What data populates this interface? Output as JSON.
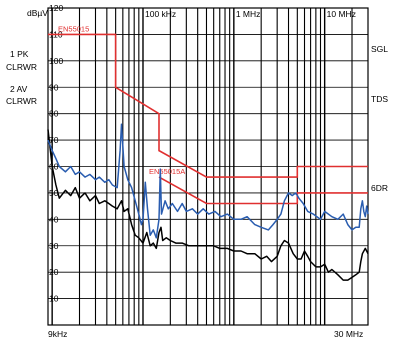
{
  "header": {
    "unit": "dBµV",
    "left_labels": [
      "1 PK",
      "CLRWR",
      "2 AV",
      "CLRWR"
    ],
    "right_labels": [
      "SGL",
      "TDS",
      "6DR"
    ],
    "x_start_label": "9kHz",
    "x_end_label": "30 MHz"
  },
  "chart_data": {
    "type": "line",
    "x_scale": "log",
    "xlim_hz": [
      9000,
      30000000
    ],
    "ylim": [
      0,
      120
    ],
    "ylabel": "dBµV",
    "x_tick_labels": [
      {
        "hz": 100000,
        "label": "100 kHz"
      },
      {
        "hz": 1000000,
        "label": "1 MHz"
      },
      {
        "hz": 10000000,
        "label": "10 MHz"
      }
    ],
    "y_tick_labels": [
      "120",
      "110",
      "100",
      "90",
      "80",
      "70",
      "60",
      "50",
      "40",
      "30",
      "20",
      "10"
    ],
    "grid": true,
    "limit_lines": [
      {
        "name": "EN55015",
        "color": "#e03030",
        "points": [
          [
            9000,
            110
          ],
          [
            50000,
            110
          ],
          [
            50000,
            90
          ],
          [
            150000,
            80
          ],
          [
            150000,
            66
          ],
          [
            500000,
            56
          ],
          [
            5000000,
            56
          ],
          [
            5000000,
            60
          ],
          [
            30000000,
            60
          ]
        ]
      },
      {
        "name": "EN55015A",
        "color": "#e03030",
        "points": [
          [
            150000,
            56
          ],
          [
            500000,
            46
          ],
          [
            5000000,
            46
          ],
          [
            5000000,
            50
          ],
          [
            30000000,
            50
          ]
        ]
      }
    ],
    "series": [
      {
        "name": "1 PK",
        "color": "#2a5db0",
        "points": [
          [
            9000,
            70
          ],
          [
            10000,
            66
          ],
          [
            11000,
            63
          ],
          [
            12000,
            60
          ],
          [
            14000,
            58
          ],
          [
            16000,
            60
          ],
          [
            18000,
            57
          ],
          [
            20000,
            58
          ],
          [
            23000,
            56
          ],
          [
            26000,
            57
          ],
          [
            30000,
            55
          ],
          [
            33000,
            56
          ],
          [
            38000,
            54
          ],
          [
            42000,
            55
          ],
          [
            46000,
            53
          ],
          [
            52000,
            52
          ],
          [
            56000,
            66
          ],
          [
            58000,
            76
          ],
          [
            62000,
            60
          ],
          [
            68000,
            55
          ],
          [
            75000,
            52
          ],
          [
            82000,
            47
          ],
          [
            90000,
            42
          ],
          [
            96000,
            38
          ],
          [
            100000,
            40
          ],
          [
            106000,
            54
          ],
          [
            112000,
            44
          ],
          [
            120000,
            34
          ],
          [
            130000,
            36
          ],
          [
            140000,
            33
          ],
          [
            150000,
            40
          ],
          [
            155000,
            59
          ],
          [
            160000,
            42
          ],
          [
            175000,
            47
          ],
          [
            190000,
            44
          ],
          [
            210000,
            46
          ],
          [
            240000,
            43
          ],
          [
            270000,
            46
          ],
          [
            300000,
            43
          ],
          [
            350000,
            44
          ],
          [
            400000,
            42
          ],
          [
            460000,
            44
          ],
          [
            530000,
            42
          ],
          [
            620000,
            43
          ],
          [
            720000,
            41
          ],
          [
            850000,
            42
          ],
          [
            1000000,
            40
          ],
          [
            1200000,
            40
          ],
          [
            1400000,
            41
          ],
          [
            1700000,
            38
          ],
          [
            2000000,
            37
          ],
          [
            2400000,
            36
          ],
          [
            2700000,
            38
          ],
          [
            3000000,
            40
          ],
          [
            3300000,
            42
          ],
          [
            3600000,
            47
          ],
          [
            4000000,
            50
          ],
          [
            4400000,
            49
          ],
          [
            4800000,
            50
          ],
          [
            5200000,
            48
          ],
          [
            5800000,
            46
          ],
          [
            6500000,
            43
          ],
          [
            7500000,
            42
          ],
          [
            9000000,
            40
          ],
          [
            10000000,
            43
          ],
          [
            12000000,
            41
          ],
          [
            14000000,
            40
          ],
          [
            16000000,
            42
          ],
          [
            18000000,
            38
          ],
          [
            20000000,
            36
          ],
          [
            22000000,
            37
          ],
          [
            24000000,
            37
          ],
          [
            25000000,
            44
          ],
          [
            26000000,
            47
          ],
          [
            27000000,
            43
          ],
          [
            28000000,
            41
          ],
          [
            29000000,
            45
          ],
          [
            30000000,
            42
          ]
        ]
      },
      {
        "name": "2 AV",
        "color": "#000000",
        "points": [
          [
            9000,
            74
          ],
          [
            10000,
            60
          ],
          [
            11000,
            53
          ],
          [
            12000,
            48
          ],
          [
            14000,
            51
          ],
          [
            16000,
            49
          ],
          [
            18000,
            52
          ],
          [
            20000,
            48
          ],
          [
            23000,
            50
          ],
          [
            26000,
            47
          ],
          [
            30000,
            49
          ],
          [
            33000,
            46
          ],
          [
            38000,
            47
          ],
          [
            42000,
            46
          ],
          [
            46000,
            45
          ],
          [
            52000,
            44
          ],
          [
            58000,
            47
          ],
          [
            62000,
            43
          ],
          [
            68000,
            44
          ],
          [
            75000,
            38
          ],
          [
            82000,
            34
          ],
          [
            90000,
            33
          ],
          [
            100000,
            31
          ],
          [
            110000,
            35
          ],
          [
            120000,
            30
          ],
          [
            130000,
            31
          ],
          [
            140000,
            29
          ],
          [
            150000,
            35
          ],
          [
            158000,
            37
          ],
          [
            165000,
            32
          ],
          [
            180000,
            33
          ],
          [
            200000,
            32
          ],
          [
            230000,
            31
          ],
          [
            270000,
            31
          ],
          [
            320000,
            30
          ],
          [
            400000,
            30
          ],
          [
            500000,
            30
          ],
          [
            600000,
            30
          ],
          [
            700000,
            29
          ],
          [
            850000,
            29
          ],
          [
            1000000,
            28
          ],
          [
            1200000,
            28
          ],
          [
            1400000,
            27
          ],
          [
            1700000,
            27
          ],
          [
            2000000,
            25
          ],
          [
            2300000,
            26
          ],
          [
            2600000,
            24
          ],
          [
            3000000,
            26
          ],
          [
            3300000,
            30
          ],
          [
            3600000,
            32
          ],
          [
            4000000,
            31
          ],
          [
            4500000,
            27
          ],
          [
            5000000,
            25
          ],
          [
            5500000,
            25
          ],
          [
            6000000,
            28
          ],
          [
            6500000,
            26
          ],
          [
            7000000,
            24
          ],
          [
            8000000,
            22
          ],
          [
            9000000,
            22
          ],
          [
            10000000,
            23
          ],
          [
            11000000,
            20
          ],
          [
            12000000,
            21
          ],
          [
            14000000,
            19
          ],
          [
            16000000,
            17
          ],
          [
            18000000,
            17
          ],
          [
            20000000,
            18
          ],
          [
            22000000,
            19
          ],
          [
            24000000,
            20
          ],
          [
            25000000,
            24
          ],
          [
            26000000,
            27
          ],
          [
            28000000,
            29
          ],
          [
            30000000,
            27
          ]
        ]
      }
    ]
  },
  "colors": {
    "grid": "#000000",
    "background": "#ffffff",
    "limit": "#e03030",
    "peak_trace": "#2a5db0",
    "average_trace": "#000000"
  }
}
